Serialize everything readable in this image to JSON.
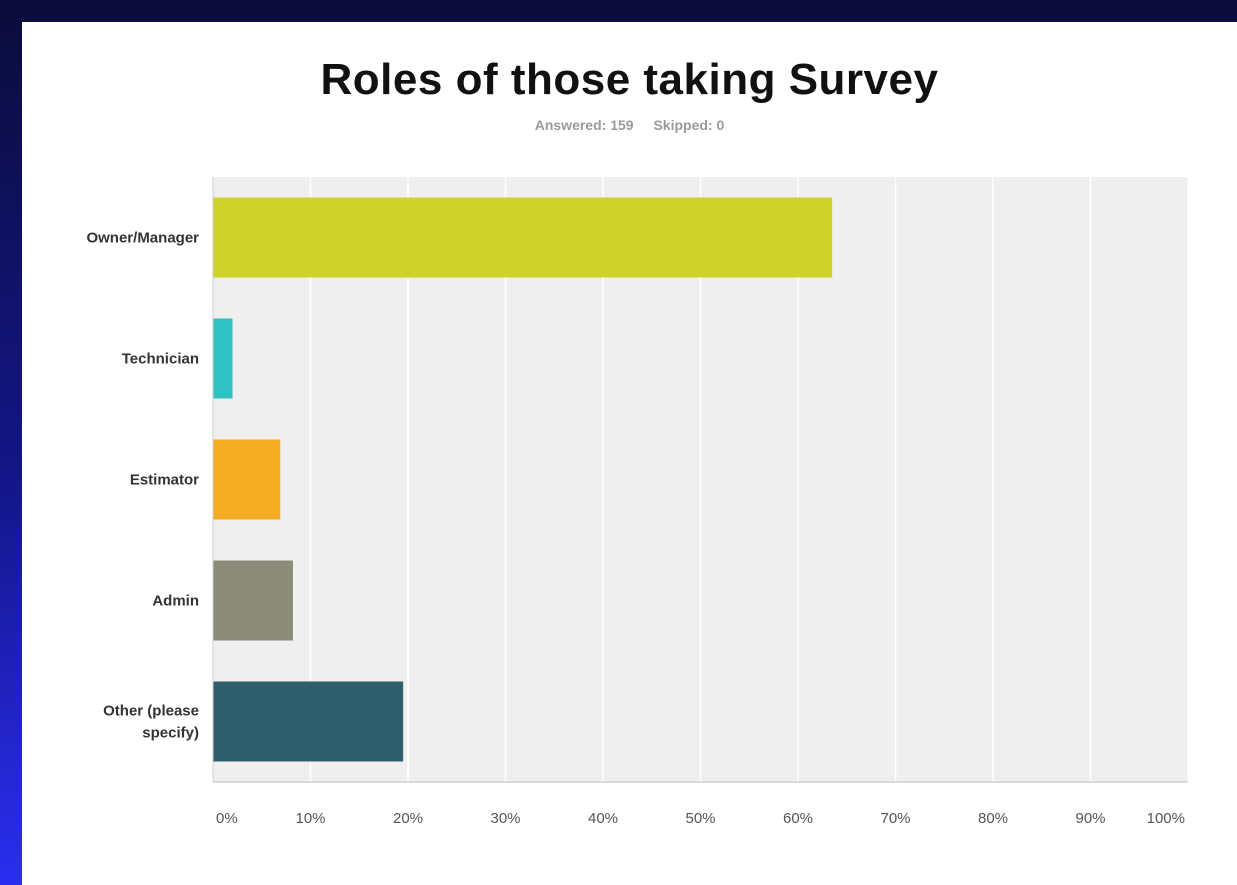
{
  "chart_data": {
    "type": "bar",
    "orientation": "horizontal",
    "title": "Roles of those taking Survey",
    "answered_label": "Answered: 159",
    "skipped_label": "Skipped: 0",
    "categories": [
      [
        "Owner/Manager"
      ],
      [
        "Technician"
      ],
      [
        "Estimator"
      ],
      [
        "Admin"
      ],
      [
        "Other (please",
        "specify)"
      ]
    ],
    "values": [
      63.5,
      2,
      6.9,
      8.2,
      19.5
    ],
    "x_ticks": [
      "0%",
      "10%",
      "20%",
      "30%",
      "40%",
      "50%",
      "60%",
      "70%",
      "80%",
      "90%",
      "100%"
    ],
    "xlim": [
      0,
      100
    ],
    "grid": true,
    "colors": [
      "#cdd329",
      "#30c2c2",
      "#f5ae23",
      "#8b8b7a",
      "#2f5f6c"
    ],
    "plot_background": "#efefef"
  }
}
